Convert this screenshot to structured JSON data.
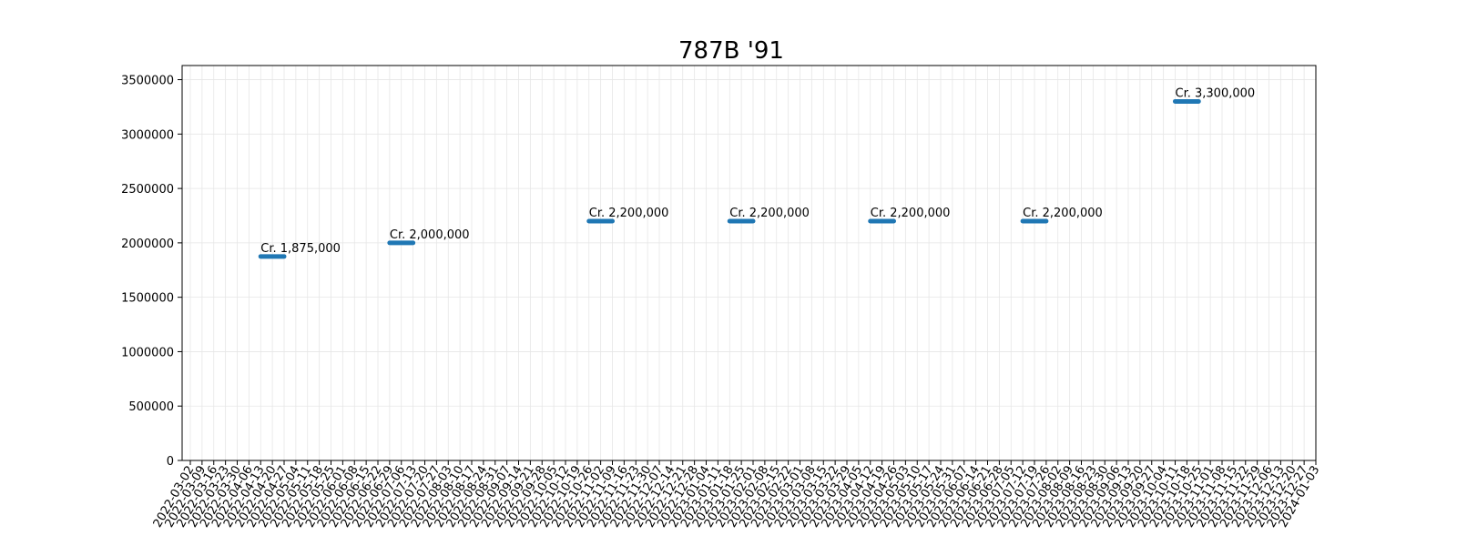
{
  "chart_data": {
    "type": "line",
    "title": "787B '91",
    "xlabel": "",
    "ylabel": "",
    "ylim": [
      0,
      3630000
    ],
    "y_ticks": [
      0,
      500000,
      1000000,
      1500000,
      2000000,
      2500000,
      3000000,
      3500000
    ],
    "grid": true,
    "x_ticks": [
      "2022-03-02",
      "2022-03-09",
      "2022-03-16",
      "2022-03-23",
      "2022-03-30",
      "2022-04-06",
      "2022-04-13",
      "2022-04-20",
      "2022-04-27",
      "2022-05-04",
      "2022-05-11",
      "2022-05-18",
      "2022-05-25",
      "2022-06-01",
      "2022-06-08",
      "2022-06-15",
      "2022-06-22",
      "2022-06-29",
      "2022-07-06",
      "2022-07-13",
      "2022-07-20",
      "2022-07-27",
      "2022-08-03",
      "2022-08-10",
      "2022-08-17",
      "2022-08-24",
      "2022-08-31",
      "2022-09-07",
      "2022-09-14",
      "2022-09-21",
      "2022-09-28",
      "2022-10-05",
      "2022-10-12",
      "2022-10-19",
      "2022-10-26",
      "2022-11-02",
      "2022-11-09",
      "2022-11-16",
      "2022-11-23",
      "2022-11-30",
      "2022-12-07",
      "2022-12-14",
      "2022-12-21",
      "2022-12-28",
      "2023-01-04",
      "2023-01-11",
      "2023-01-18",
      "2023-01-25",
      "2023-02-01",
      "2023-02-08",
      "2023-02-15",
      "2023-02-22",
      "2023-03-01",
      "2023-03-08",
      "2023-03-15",
      "2023-03-22",
      "2023-03-29",
      "2023-04-05",
      "2023-04-12",
      "2023-04-19",
      "2023-04-26",
      "2023-05-03",
      "2023-05-10",
      "2023-05-17",
      "2023-05-24",
      "2023-05-31",
      "2023-06-07",
      "2023-06-14",
      "2023-06-21",
      "2023-06-28",
      "2023-07-05",
      "2023-07-12",
      "2023-07-19",
      "2023-07-26",
      "2023-08-02",
      "2023-08-09",
      "2023-08-16",
      "2023-08-23",
      "2023-08-30",
      "2023-09-06",
      "2023-09-13",
      "2023-09-20",
      "2023-09-27",
      "2023-10-04",
      "2023-10-11",
      "2023-10-18",
      "2023-10-25",
      "2023-11-01",
      "2023-11-08",
      "2023-11-15",
      "2023-11-22",
      "2023-11-29",
      "2023-12-06",
      "2023-12-13",
      "2023-12-20",
      "2023-12-27",
      "2024-01-03"
    ],
    "segments": [
      {
        "start": "2022-04-13",
        "end": "2022-04-27",
        "value": 1875000,
        "label": "Cr. 1,875,000"
      },
      {
        "start": "2022-06-29",
        "end": "2022-07-13",
        "value": 2000000,
        "label": "Cr. 2,000,000"
      },
      {
        "start": "2022-10-26",
        "end": "2022-11-09",
        "value": 2200000,
        "label": "Cr. 2,200,000"
      },
      {
        "start": "2023-01-18",
        "end": "2023-02-01",
        "value": 2200000,
        "label": "Cr. 2,200,000"
      },
      {
        "start": "2023-04-12",
        "end": "2023-04-26",
        "value": 2200000,
        "label": "Cr. 2,200,000"
      },
      {
        "start": "2023-07-12",
        "end": "2023-07-26",
        "value": 2200000,
        "label": "Cr. 2,200,000"
      },
      {
        "start": "2023-10-11",
        "end": "2023-10-25",
        "value": 3300000,
        "label": "Cr. 3,300,000"
      }
    ],
    "colors": {
      "series": "#1f77b4",
      "grid": "#e6e6e6",
      "axis": "#000000"
    }
  }
}
